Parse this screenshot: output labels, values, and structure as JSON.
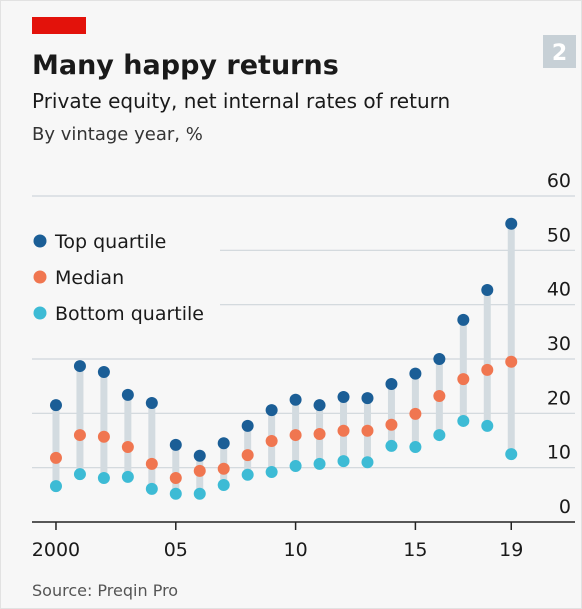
{
  "chart_data": {
    "type": "dot-range",
    "badge": "2",
    "title": "Many happy returns",
    "subtitle": "Private equity, net internal rates of return",
    "y_label": "By vintage year, %",
    "source": "Source: Preqin Pro",
    "x": [
      2000,
      2001,
      2002,
      2003,
      2004,
      2005,
      2006,
      2007,
      2008,
      2009,
      2010,
      2011,
      2012,
      2013,
      2014,
      2015,
      2016,
      2017,
      2018,
      2019
    ],
    "series": [
      {
        "name": "Top quartile",
        "color": "#1b5e96",
        "values": [
          21.5,
          28.7,
          27.6,
          23.4,
          21.9,
          14.2,
          12.2,
          14.5,
          17.7,
          20.6,
          22.5,
          21.5,
          23.0,
          22.8,
          25.4,
          27.3,
          30.0,
          37.2,
          42.7,
          54.9
        ]
      },
      {
        "name": "Median",
        "color": "#f07650",
        "values": [
          11.8,
          16.0,
          15.7,
          13.8,
          10.7,
          8.1,
          9.4,
          9.8,
          12.3,
          14.9,
          16.0,
          16.2,
          16.8,
          16.8,
          17.9,
          19.9,
          23.2,
          26.3,
          28.0,
          29.5
        ]
      },
      {
        "name": "Bottom quartile",
        "color": "#3dbbd5",
        "values": [
          6.6,
          8.8,
          8.1,
          8.3,
          6.1,
          5.2,
          5.2,
          6.8,
          8.7,
          9.2,
          10.3,
          10.7,
          11.2,
          11.0,
          14.0,
          13.8,
          16.0,
          18.6,
          17.7,
          12.5
        ]
      }
    ],
    "range_color": "#d3dbe0",
    "xlim": [
      1999.5,
      2020.2
    ],
    "xticks": [
      2000,
      {
        "value": 2005,
        "label": "05"
      },
      {
        "value": 2010,
        "label": "10"
      },
      {
        "value": 2015,
        "label": "15"
      },
      {
        "value": 2019,
        "label": "19"
      }
    ],
    "ylim": [
      0,
      60
    ],
    "yticks": [
      0,
      10,
      20,
      30,
      40,
      50,
      60
    ],
    "grid": true,
    "legend": "top-left"
  }
}
